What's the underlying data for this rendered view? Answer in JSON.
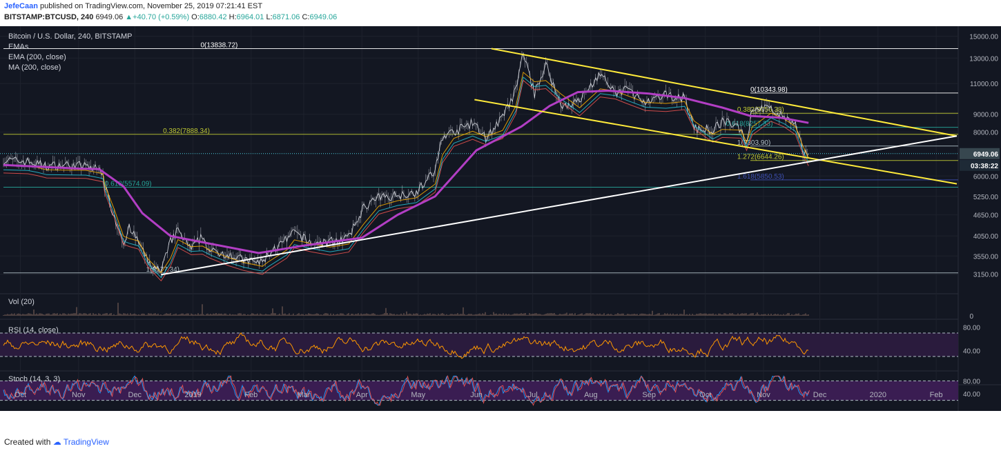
{
  "header": {
    "author": "JefeCaan",
    "published": "published on TradingView.com, November 25, 2019 07:21:41 EST",
    "symbol": "BITSTAMP:BTCUSD, 240",
    "last": "6949.06",
    "change": "+40.70 (+0.59%)",
    "ohlc": [
      {
        "k": "O:",
        "v": "6880.42"
      },
      {
        "k": "H:",
        "v": "6964.01"
      },
      {
        "k": "L:",
        "v": "6871.06"
      },
      {
        "k": "C:",
        "v": "6949.06"
      }
    ]
  },
  "footer": {
    "created_with": "Created with",
    "brand": "TradingView"
  },
  "colors": {
    "background": "#131722",
    "candles": "#d1d4dc",
    "ema200": "#b23ec4",
    "trend_yellow": "#ffeb3b",
    "trend_white": "#ffffff",
    "rsi_line": "#ff9800",
    "rsi_band": "#2a1b3d",
    "stoch_k": "#2196f3",
    "stoch_d": "#ef5350",
    "stoch_band": "#3a1d52",
    "price_label": "#37474f",
    "countdown_label": "#1e2a36"
  },
  "chart_data": {
    "type": "line",
    "title": "Bitcoin / U.S. Dollar, 240, BITSTAMP",
    "legend": [
      "EMAs",
      "EMA (200, close)",
      "MA (200, close)"
    ],
    "y_scale": "log",
    "ylim": [
      2900,
      15600
    ],
    "y_ticks": [
      15000,
      13000,
      11000,
      9000,
      8000,
      6000,
      5250,
      4650,
      4050,
      3550,
      3150
    ],
    "y_tick_labels": [
      "15000.00",
      "13000.00",
      "11000.00",
      "9000.00",
      "8000.00",
      "6000.00",
      "5250.00",
      "4650.00",
      "4050.00",
      "3550.00",
      "3150.00"
    ],
    "x_labels": [
      {
        "label": "Oct",
        "date": "2018-10-01"
      },
      {
        "label": "Nov",
        "date": "2018-11-01"
      },
      {
        "label": "Dec",
        "date": "2018-12-01"
      },
      {
        "label": "2019",
        "date": "2019-01-01"
      },
      {
        "label": "Feb",
        "date": "2019-02-01"
      },
      {
        "label": "Mar",
        "date": "2019-03-01"
      },
      {
        "label": "Apr",
        "date": "2019-04-01"
      },
      {
        "label": "May",
        "date": "2019-05-01"
      },
      {
        "label": "Jun",
        "date": "2019-06-01"
      },
      {
        "label": "Jul",
        "date": "2019-07-01"
      },
      {
        "label": "Aug",
        "date": "2019-08-01"
      },
      {
        "label": "Sep",
        "date": "2019-09-01"
      },
      {
        "label": "Oct",
        "date": "2019-10-01"
      },
      {
        "label": "Nov",
        "date": "2019-11-01"
      },
      {
        "label": "Dec",
        "date": "2019-12-01"
      },
      {
        "label": "2020",
        "date": "2020-01-01"
      },
      {
        "label": "Feb",
        "date": "2020-02-01"
      }
    ],
    "x_range": [
      "2018-09-22",
      "2020-02-12"
    ],
    "price": [
      {
        "x": "2018-09-22",
        "y": 6650
      },
      {
        "x": "2018-10-05",
        "y": 6600
      },
      {
        "x": "2018-10-10",
        "y": 6500
      },
      {
        "x": "2018-10-15",
        "y": 6400
      },
      {
        "x": "2018-10-25",
        "y": 6450
      },
      {
        "x": "2018-11-05",
        "y": 6400
      },
      {
        "x": "2018-11-14",
        "y": 6200
      },
      {
        "x": "2018-11-15",
        "y": 5600
      },
      {
        "x": "2018-11-20",
        "y": 4600
      },
      {
        "x": "2018-11-25",
        "y": 3900
      },
      {
        "x": "2018-11-28",
        "y": 4250
      },
      {
        "x": "2018-12-03",
        "y": 3900
      },
      {
        "x": "2018-12-08",
        "y": 3400
      },
      {
        "x": "2018-12-15",
        "y": 3200
      },
      {
        "x": "2018-12-20",
        "y": 3900
      },
      {
        "x": "2018-12-24",
        "y": 4200
      },
      {
        "x": "2018-12-31",
        "y": 3700
      },
      {
        "x": "2019-01-06",
        "y": 4050
      },
      {
        "x": "2019-01-10",
        "y": 3650
      },
      {
        "x": "2019-01-20",
        "y": 3600
      },
      {
        "x": "2019-01-28",
        "y": 3450
      },
      {
        "x": "2019-02-07",
        "y": 3400
      },
      {
        "x": "2019-02-10",
        "y": 3600
      },
      {
        "x": "2019-02-20",
        "y": 3950
      },
      {
        "x": "2019-02-24",
        "y": 4150
      },
      {
        "x": "2019-03-05",
        "y": 3850
      },
      {
        "x": "2019-03-15",
        "y": 3900
      },
      {
        "x": "2019-03-25",
        "y": 4000
      },
      {
        "x": "2019-04-02",
        "y": 4900
      },
      {
        "x": "2019-04-10",
        "y": 5200
      },
      {
        "x": "2019-04-20",
        "y": 5300
      },
      {
        "x": "2019-04-30",
        "y": 5400
      },
      {
        "x": "2019-05-10",
        "y": 6200
      },
      {
        "x": "2019-05-14",
        "y": 7800
      },
      {
        "x": "2019-05-20",
        "y": 8000
      },
      {
        "x": "2019-05-30",
        "y": 8500
      },
      {
        "x": "2019-06-06",
        "y": 7700
      },
      {
        "x": "2019-06-15",
        "y": 8800
      },
      {
        "x": "2019-06-22",
        "y": 10500
      },
      {
        "x": "2019-06-26",
        "y": 13500
      },
      {
        "x": "2019-07-02",
        "y": 10300
      },
      {
        "x": "2019-07-08",
        "y": 12500
      },
      {
        "x": "2019-07-16",
        "y": 9500
      },
      {
        "x": "2019-07-26",
        "y": 9800
      },
      {
        "x": "2019-08-06",
        "y": 11800
      },
      {
        "x": "2019-08-14",
        "y": 10200
      },
      {
        "x": "2019-08-20",
        "y": 10700
      },
      {
        "x": "2019-08-30",
        "y": 9600
      },
      {
        "x": "2019-09-10",
        "y": 10200
      },
      {
        "x": "2019-09-20",
        "y": 10000
      },
      {
        "x": "2019-09-25",
        "y": 8200
      },
      {
        "x": "2019-10-05",
        "y": 8100
      },
      {
        "x": "2019-10-10",
        "y": 8600
      },
      {
        "x": "2019-10-20",
        "y": 8200
      },
      {
        "x": "2019-10-23",
        "y": 7400
      },
      {
        "x": "2019-10-26",
        "y": 9400
      },
      {
        "x": "2019-11-05",
        "y": 9300
      },
      {
        "x": "2019-11-12",
        "y": 8800
      },
      {
        "x": "2019-11-18",
        "y": 8400
      },
      {
        "x": "2019-11-22",
        "y": 7000
      },
      {
        "x": "2019-11-25",
        "y": 6949
      }
    ],
    "ema200": [
      {
        "x": "2018-09-22",
        "y": 6450
      },
      {
        "x": "2018-11-01",
        "y": 6300
      },
      {
        "x": "2018-11-12",
        "y": 6280
      },
      {
        "x": "2018-11-25",
        "y": 5600
      },
      {
        "x": "2018-12-05",
        "y": 4700
      },
      {
        "x": "2018-12-20",
        "y": 4050
      },
      {
        "x": "2019-01-10",
        "y": 3850
      },
      {
        "x": "2019-02-05",
        "y": 3620
      },
      {
        "x": "2019-03-01",
        "y": 3800
      },
      {
        "x": "2019-04-01",
        "y": 4000
      },
      {
        "x": "2019-04-20",
        "y": 4650
      },
      {
        "x": "2019-05-10",
        "y": 5250
      },
      {
        "x": "2019-06-01",
        "y": 7100
      },
      {
        "x": "2019-06-25",
        "y": 8300
      },
      {
        "x": "2019-07-10",
        "y": 9500
      },
      {
        "x": "2019-07-25",
        "y": 10400
      },
      {
        "x": "2019-08-10",
        "y": 10500
      },
      {
        "x": "2019-09-01",
        "y": 10300
      },
      {
        "x": "2019-09-20",
        "y": 10000
      },
      {
        "x": "2019-10-10",
        "y": 9400
      },
      {
        "x": "2019-10-25",
        "y": 8900
      },
      {
        "x": "2019-11-10",
        "y": 8800
      },
      {
        "x": "2019-11-25",
        "y": 8500
      }
    ],
    "trendlines": [
      {
        "name": "upper-channel",
        "color": "yellow",
        "points": [
          {
            "x": "2019-06-09",
            "y": 13838
          },
          {
            "x": "2020-02-12",
            "y": 7800
          }
        ]
      },
      {
        "name": "lower-channel",
        "color": "yellow",
        "points": [
          {
            "x": "2019-05-31",
            "y": 9900
          },
          {
            "x": "2020-02-12",
            "y": 5700
          }
        ]
      },
      {
        "name": "support",
        "color": "white",
        "points": [
          {
            "x": "2018-12-15",
            "y": 3140
          },
          {
            "x": "2020-02-12",
            "y": 7800
          }
        ]
      }
    ],
    "fib_levels": [
      {
        "label": "0(13838.72)",
        "value": 13838.72,
        "color": "#ffffff",
        "x_start": "2018-09-22",
        "label_at": "2019-01-05"
      },
      {
        "label": "0(10343.98)",
        "value": 10343.98,
        "color": "#ffffff",
        "x_start": "2019-10-25",
        "label_at": "2019-10-25"
      },
      {
        "label": "0.382(9056.38)",
        "value": 9056.38,
        "color": "#c0ca33",
        "x_start": "2019-10-25",
        "label_at": "2019-10-18"
      },
      {
        "label": "0.618(8257.33)",
        "value": 8257.33,
        "color": "#26a69a",
        "x_start": "2019-10-25",
        "label_at": "2019-10-12"
      },
      {
        "label": "0.382(7888.34)",
        "value": 7888.34,
        "color": "#c0ca33",
        "x_start": "2018-09-22",
        "label_at": "2018-12-16"
      },
      {
        "label": "1(7303.90)",
        "value": 7303.9,
        "color": "#b0bec5",
        "x_start": "2019-10-25",
        "label_at": "2019-10-18"
      },
      {
        "label": "1.272(6644.26)",
        "value": 6644.26,
        "color": "#c0ca33",
        "x_start": "2019-10-25",
        "label_at": "2019-10-18"
      },
      {
        "label": "1.618(5850.53)",
        "value": 5850.53,
        "color": "#3f51b5",
        "x_start": "2019-10-25",
        "label_at": "2019-10-18"
      },
      {
        "label": "0.618(5574.09)",
        "value": 5574.09,
        "color": "#26a69a",
        "x_start": "2018-09-22",
        "label_at": "2018-11-15"
      },
      {
        "label": "1(3177.34)",
        "value": 3177.34,
        "color": "#b0bec5",
        "x_start": "2018-09-22",
        "label_at": "2018-12-07"
      }
    ],
    "price_labels": [
      {
        "text": "6949.06",
        "value": 6949.06
      },
      {
        "text": "03:38:22",
        "value": 6700
      }
    ],
    "panes": [
      {
        "name": "volume",
        "label": "Vol (20)",
        "y_ticks": [
          0
        ]
      },
      {
        "name": "rsi",
        "label": "RSI (14, close)",
        "y_ticks": [
          80,
          40
        ],
        "band": [
          30,
          70
        ],
        "ylim": [
          10,
          90
        ]
      },
      {
        "name": "stoch",
        "label": "Stoch (14, 3, 3)",
        "y_ticks": [
          80,
          40
        ],
        "band": [
          20,
          80
        ],
        "ylim": [
          0,
          100
        ]
      }
    ]
  }
}
